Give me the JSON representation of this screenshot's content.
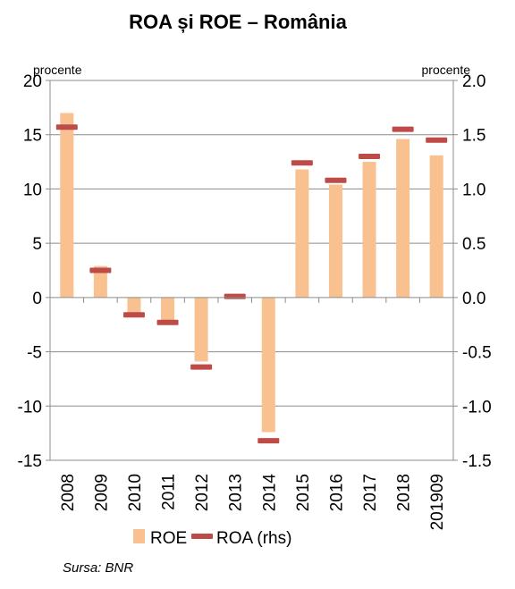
{
  "chart_data": {
    "type": "bar",
    "title": "ROA și ROE – România",
    "left_unit": "procente",
    "right_unit": "procente",
    "categories": [
      "2008",
      "2009",
      "2010",
      "2011",
      "2012",
      "2013",
      "2014",
      "2015",
      "2016",
      "2017",
      "2018",
      "201909"
    ],
    "series": [
      {
        "name": "ROE",
        "kind": "bar",
        "axis": "left",
        "color": "#F9C090",
        "values": [
          17.0,
          2.9,
          -1.5,
          -2.1,
          -5.9,
          0.0,
          -12.4,
          11.8,
          10.4,
          12.5,
          14.6,
          13.1
        ]
      },
      {
        "name": "ROA (rhs)",
        "kind": "marker",
        "axis": "right",
        "color": "#BE4B48",
        "values": [
          1.57,
          0.25,
          -0.16,
          -0.23,
          -0.64,
          0.01,
          -1.32,
          1.24,
          1.08,
          1.3,
          1.55,
          1.45
        ]
      }
    ],
    "ylim_left": [
      -15,
      20
    ],
    "yticks_left": [
      "20",
      "15",
      "10",
      "5",
      "0",
      "-5",
      "-10",
      "-15"
    ],
    "ylim_right": [
      -1.5,
      2.0
    ],
    "yticks_right": [
      "2.0",
      "1.5",
      "1.0",
      "0.5",
      "0.0",
      "-0.5",
      "-1.0",
      "-1.5"
    ],
    "grid": true,
    "legend_position": "bottom",
    "source_note": "Sursa: BNR"
  }
}
